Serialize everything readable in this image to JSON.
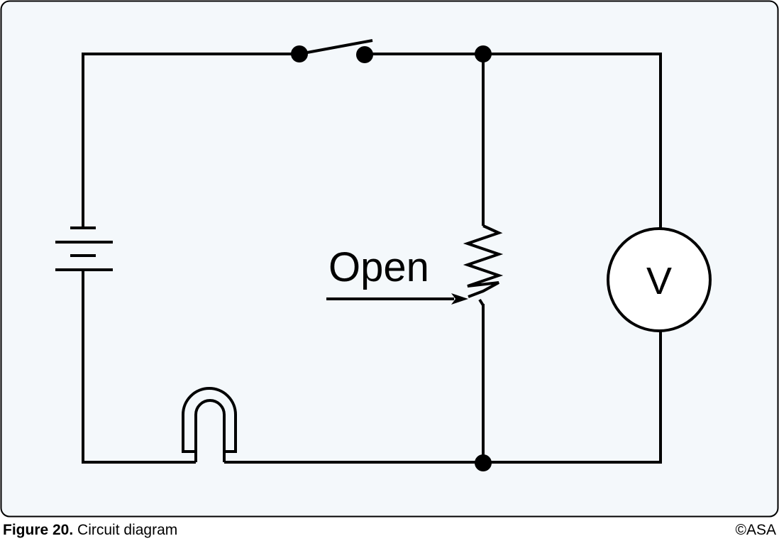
{
  "diagram": {
    "background_color": "#f4f8fb",
    "line_color": "#000000",
    "annotation_label": "Open",
    "meter_label": "V",
    "components": [
      "battery",
      "switch",
      "variable-resistor",
      "voltmeter",
      "lamp"
    ]
  },
  "caption": {
    "figure_number": "Figure 20.",
    "title": "Circuit diagram",
    "copyright": "©ASA"
  }
}
